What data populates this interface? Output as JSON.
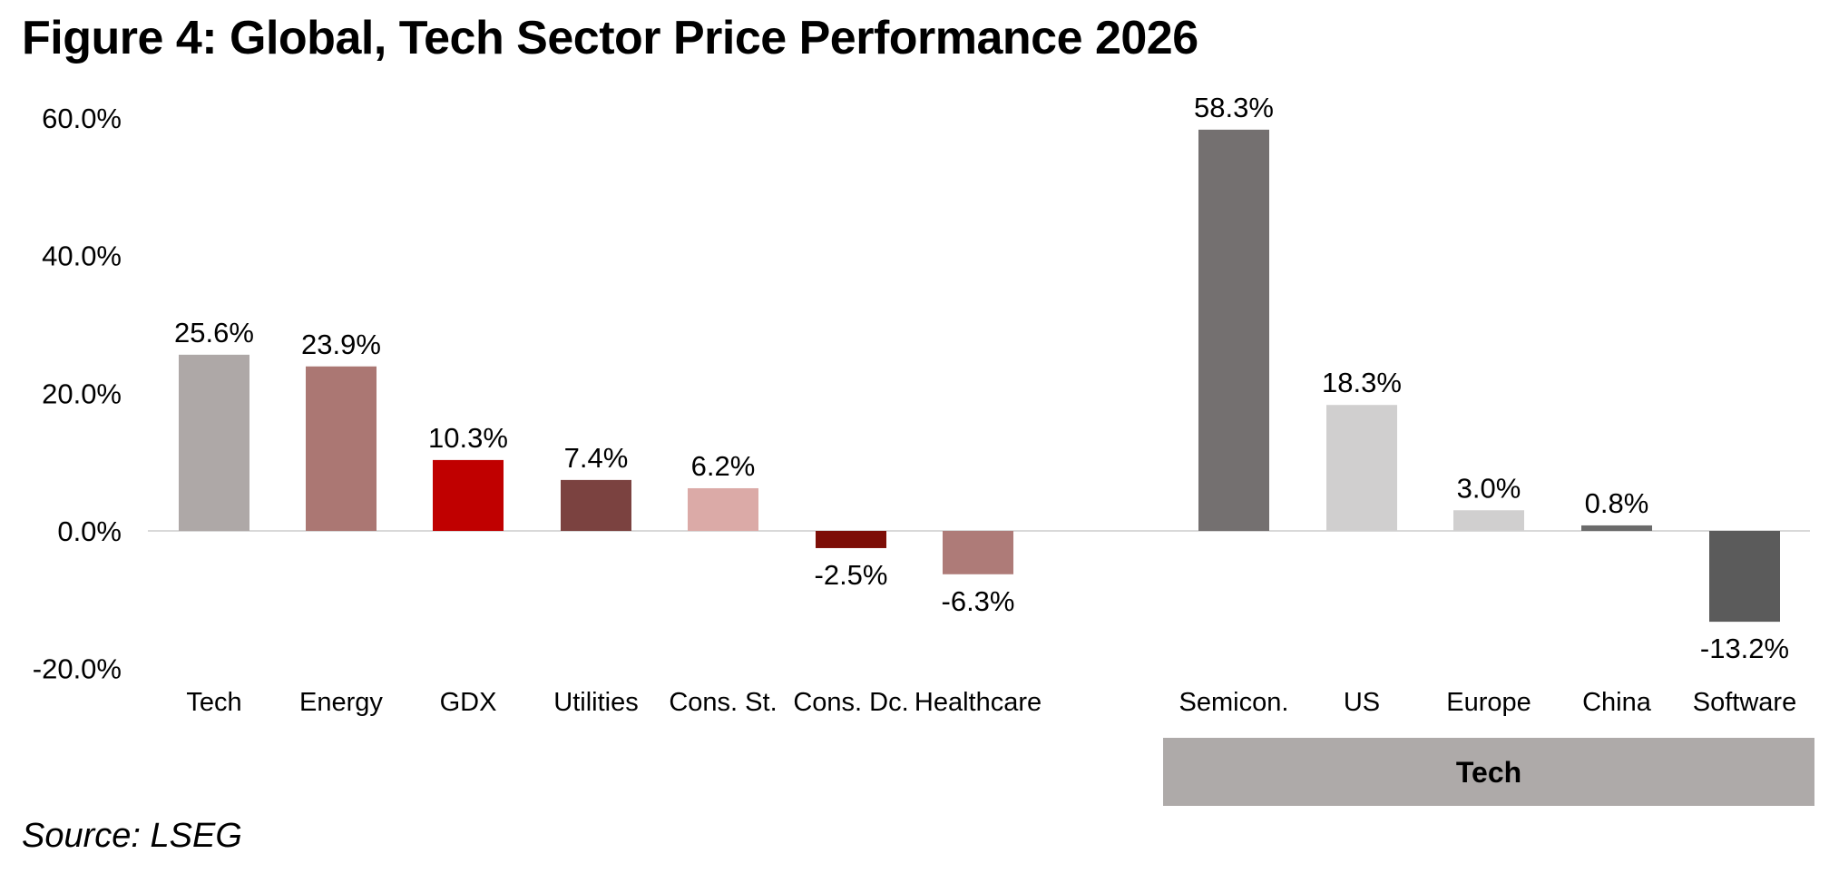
{
  "title": "Figure 4: Global, Tech Sector Price Performance 2026",
  "source": "Source: LSEG",
  "chart_data": {
    "type": "bar",
    "title": "Figure 4: Global, Tech Sector Price Performance 2026",
    "ylim": [
      -20,
      60
    ],
    "yticks": [
      60,
      40,
      20,
      0,
      -20
    ],
    "ytick_labels": [
      "60.0%",
      "40.0%",
      "20.0%",
      "0.0%",
      "-20.0%"
    ],
    "grid": false,
    "legend": "none",
    "categories": [
      "Tech",
      "Energy",
      "GDX",
      "Utilities",
      "Cons. St.",
      "Cons. Dc.",
      "Healthcare",
      "Semicon.",
      "US",
      "Europe",
      "China",
      "Software"
    ],
    "values": [
      25.6,
      23.9,
      10.3,
      7.4,
      6.2,
      -2.5,
      -6.3,
      58.3,
      18.3,
      3.0,
      0.8,
      -13.2
    ],
    "value_labels": [
      "25.6%",
      "23.9%",
      "10.3%",
      "7.4%",
      "6.2%",
      "-2.5%",
      "-6.3%",
      "58.3%",
      "18.3%",
      "3.0%",
      "0.8%",
      "-13.2%"
    ],
    "colors": [
      "#aea8a7",
      "#ab7773",
      "#c00000",
      "#7b4240",
      "#dbaaa7",
      "#7d0e07",
      "#ae7b78",
      "#747070",
      "#d0cfcf",
      "#d0cfcf",
      "#6b6b6b",
      "#5b5b5b"
    ],
    "groups": [
      {
        "label": "Tech",
        "categories": [
          "Semicon.",
          "US",
          "Europe",
          "China",
          "Software"
        ],
        "color": "#aeaaa9"
      }
    ]
  }
}
